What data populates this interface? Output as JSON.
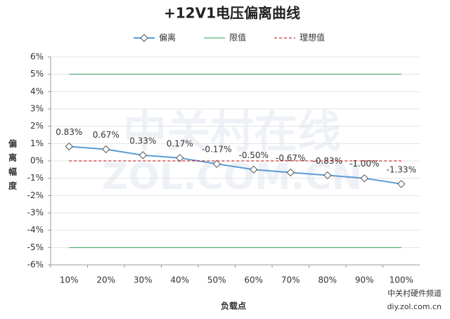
{
  "chart_data": {
    "type": "line",
    "title": "+12V1电压偏离曲线",
    "x_label": "负载点",
    "y_label": "偏离幅度",
    "watermark": [
      "中关村在线",
      "ZOL.COM.CN"
    ],
    "source": [
      "中关村硬件频道",
      "diy.zol.com.cn"
    ],
    "categories": [
      "10%",
      "20%",
      "30%",
      "40%",
      "50%",
      "60%",
      "70%",
      "80%",
      "90%",
      "100%"
    ],
    "series": [
      {
        "name": "偏离",
        "color": "#5b9bd5",
        "marker": "diamond",
        "values": [
          0.83,
          0.67,
          0.33,
          0.17,
          -0.17,
          -0.5,
          -0.67,
          -0.83,
          -1.0,
          -1.33
        ],
        "value_labels": [
          "0.83%",
          "0.67%",
          "0.33%",
          "0.17%",
          "-0.17%",
          "-0.50%",
          "-0.67%",
          "-0.83%",
          "-1.00%",
          "-1.33%"
        ]
      },
      {
        "name": "限值",
        "color": "#2e9e5b",
        "dash": false,
        "levels": [
          5,
          -5
        ]
      },
      {
        "name": "理想值",
        "color": "#c00000",
        "dash": true,
        "levels": [
          0
        ]
      }
    ],
    "ylim": [
      -6,
      6
    ],
    "yticks": [
      {
        "value": -6,
        "label": "-6%"
      },
      {
        "value": -5,
        "label": "-5%"
      },
      {
        "value": -4,
        "label": "-4%"
      },
      {
        "value": -3,
        "label": "-3%"
      },
      {
        "value": -2,
        "label": "-2%"
      },
      {
        "value": -1,
        "label": "-1%"
      },
      {
        "value": 0,
        "label": "0%"
      },
      {
        "value": 1,
        "label": "1%"
      },
      {
        "value": 2,
        "label": "2%"
      },
      {
        "value": 3,
        "label": "3%"
      },
      {
        "value": 4,
        "label": "4%"
      },
      {
        "value": 5,
        "label": "5%"
      },
      {
        "value": 6,
        "label": "6%"
      }
    ],
    "grid": true,
    "legend": "top"
  }
}
